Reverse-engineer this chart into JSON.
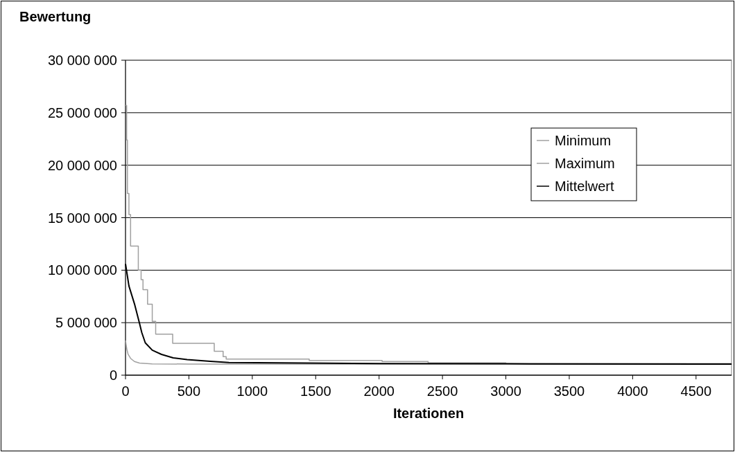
{
  "chart_data": {
    "type": "line",
    "ylabel": "Bewertung",
    "xlabel": "Iterationen",
    "xlim": [
      0,
      4780
    ],
    "xticks": [
      0,
      500,
      1000,
      1500,
      2000,
      2500,
      3000,
      3500,
      4000,
      4500
    ],
    "ylim": [
      0,
      30000000
    ],
    "yticks": [
      {
        "value": 0,
        "label": "0"
      },
      {
        "value": 5000000,
        "label": "5 000 000"
      },
      {
        "value": 10000000,
        "label": "10 000 000"
      },
      {
        "value": 15000000,
        "label": "15 000 000"
      },
      {
        "value": 20000000,
        "label": "20 000 000"
      },
      {
        "value": 25000000,
        "label": "25 000 000"
      },
      {
        "value": 30000000,
        "label": "30 000 000"
      }
    ],
    "grid": "y",
    "legend": "right",
    "series": [
      {
        "name": "Minimum",
        "color": "#a0a0a0",
        "x": [
          0,
          10,
          20,
          40,
          70,
          110,
          210,
          500,
          1000,
          2000,
          3000,
          4780
        ],
        "values": [
          3300000,
          2500000,
          2000000,
          1600000,
          1300000,
          1150000,
          1070000,
          1060000,
          1050000,
          1050000,
          1050000,
          1050000
        ]
      },
      {
        "name": "Maximum",
        "type": "step",
        "color": "#a0a0a0",
        "x": [
          0,
          9,
          15,
          27,
          40,
          101,
          123,
          138,
          174,
          211,
          238,
          372,
          700,
          770,
          794,
          1449,
          2024,
          2387,
          3000,
          4780
        ],
        "values": [
          25700000,
          22400000,
          17300000,
          15300000,
          12300000,
          10000000,
          9100000,
          8150000,
          6760000,
          5130000,
          3900000,
          3040000,
          2270000,
          1760000,
          1540000,
          1400000,
          1300000,
          1170000,
          1100000,
          1100000
        ]
      },
      {
        "name": "Mittelwert",
        "color": "#000000",
        "x": [
          0,
          27,
          73,
          110,
          128,
          156,
          211,
          284,
          376,
          486,
          669,
          816,
          1036,
          2000,
          3000,
          4780
        ],
        "values": [
          10600000,
          8500000,
          6700000,
          4960000,
          4070000,
          3080000,
          2380000,
          1980000,
          1650000,
          1480000,
          1320000,
          1210000,
          1190000,
          1100000,
          1080000,
          1060000
        ]
      }
    ]
  }
}
